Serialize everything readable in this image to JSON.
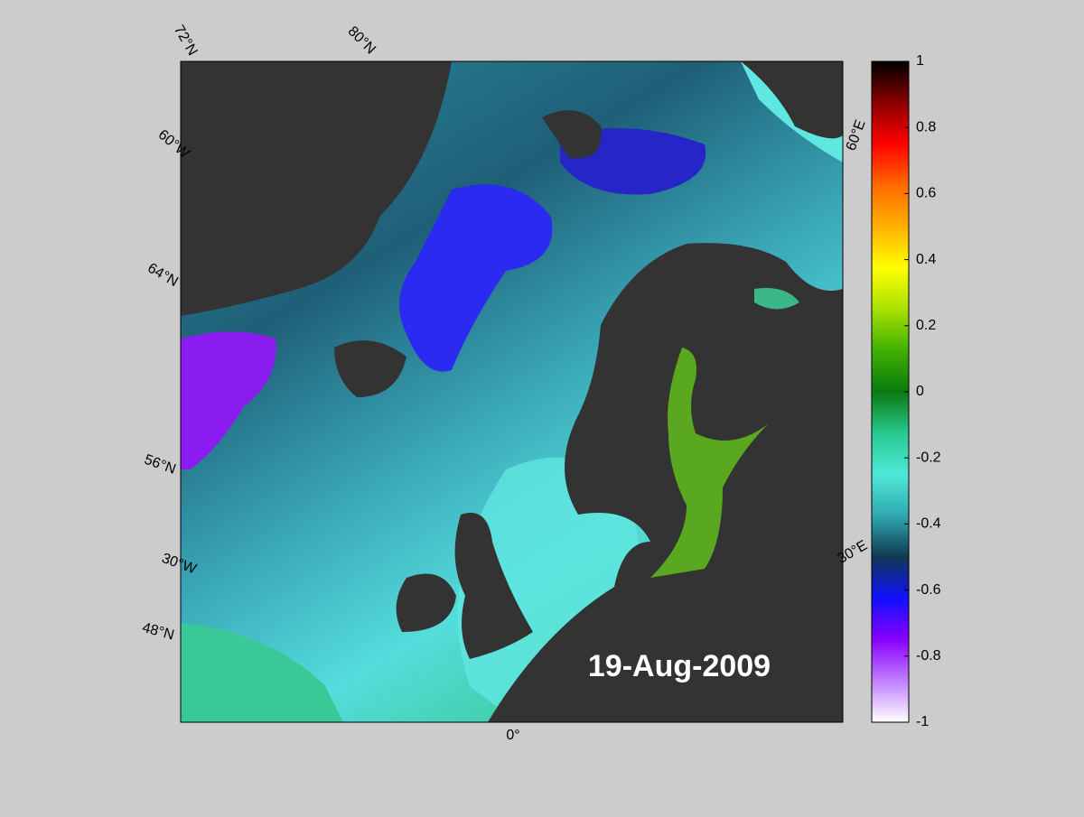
{
  "map": {
    "date": "19-Aug-2009",
    "grid_labels": [
      "72°N",
      "80°N",
      "60°W",
      "64°N",
      "56°N",
      "30°W",
      "48°N",
      "0°",
      "60°E",
      "30°E"
    ],
    "colorbar": {
      "lim": [
        -1,
        1
      ],
      "ticks": [
        1,
        0.8,
        0.6,
        0.4,
        0.2,
        0,
        -0.2,
        -0.4,
        -0.6,
        -0.8,
        -1
      ],
      "colormap": [
        "#000000",
        "#8b0000",
        "#ff0000",
        "#ff6a00",
        "#ffb000",
        "#ffff00",
        "#a8e000",
        "#40b000",
        "#0a7a10",
        "#28c890",
        "#50e8d8",
        "#2fa8b0",
        "#103850",
        "#1010ff",
        "#8a00ff",
        "#c080ff",
        "#ffffff"
      ]
    }
  }
}
